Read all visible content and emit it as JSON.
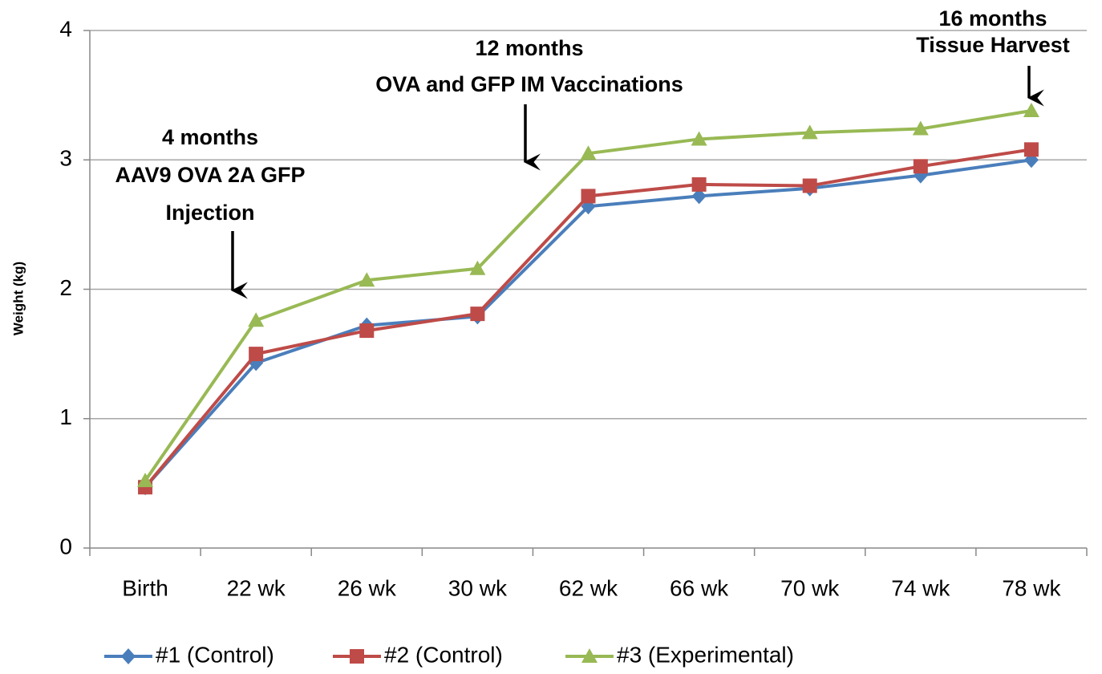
{
  "chart_data": {
    "type": "line",
    "y_label": "Weight (kg)",
    "categories": [
      "Birth",
      "22 wk",
      "26 wk",
      "30 wk",
      "62 wk",
      "66 wk",
      "70 wk",
      "74 wk",
      "78 wk"
    ],
    "series": [
      {
        "name": "#1 (Control)",
        "color": "#4a7ebb",
        "marker": "diamond",
        "values": [
          0.47,
          1.43,
          1.72,
          1.79,
          2.64,
          2.72,
          2.78,
          2.88,
          3.0
        ]
      },
      {
        "name": "#2 (Control)",
        "color": "#be4b48",
        "marker": "square",
        "values": [
          0.47,
          1.5,
          1.68,
          1.81,
          2.72,
          2.81,
          2.8,
          2.95,
          3.08
        ]
      },
      {
        "name": "#3 (Experimental)",
        "color": "#98b954",
        "marker": "triangle",
        "values": [
          0.52,
          1.76,
          2.07,
          2.16,
          3.05,
          3.16,
          3.21,
          3.24,
          3.38
        ]
      }
    ],
    "ylim": [
      0,
      4
    ],
    "yticks": [
      0,
      1,
      2,
      3,
      4
    ],
    "grid": true,
    "legend": "bottom",
    "annotations": [
      {
        "lines": [
          "4 months",
          "AAV9 OVA 2A GFP",
          "Injection"
        ]
      },
      {
        "lines": [
          "12 months",
          "OVA and GFP IM Vaccinations"
        ]
      },
      {
        "lines": [
          "16 months",
          "Tissue Harvest"
        ]
      }
    ]
  }
}
